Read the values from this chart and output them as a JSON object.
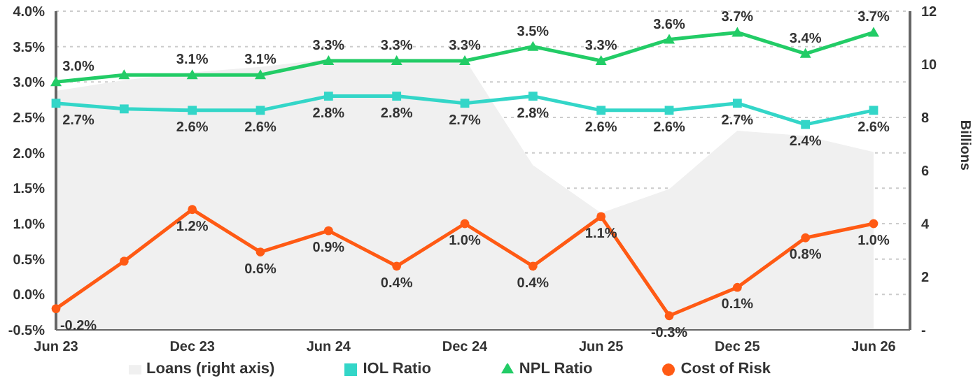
{
  "chart_data": {
    "type": "line",
    "y2label": "Billions",
    "categories": [
      "Jun 23",
      null,
      "Dec 23",
      null,
      "Jun 24",
      null,
      "Dec 24",
      null,
      "Jun 25",
      null,
      "Dec 25",
      null,
      "Jun 26"
    ],
    "series": [
      {
        "name": "Loans (right axis)",
        "type": "area",
        "axis": "y2",
        "color": "#f0f0f0",
        "marker": "none",
        "values": [
          9.0,
          9.4,
          9.7,
          9.9,
          10.2,
          10.2,
          10.2,
          6.2,
          4.4,
          5.3,
          7.5,
          7.3,
          6.7
        ]
      },
      {
        "name": "IOL Ratio",
        "color": "#33d6c8",
        "marker": "square",
        "values": [
          2.7,
          2.62,
          2.6,
          2.6,
          2.8,
          2.8,
          2.7,
          2.8,
          2.6,
          2.6,
          2.7,
          2.4,
          2.6
        ],
        "value_labels": [
          "2.7%",
          null,
          "2.6%",
          "2.6%",
          "2.8%",
          "2.8%",
          "2.7%",
          "2.8%",
          "2.6%",
          "2.6%",
          "2.7%",
          "2.4%",
          "2.6%"
        ]
      },
      {
        "name": "NPL Ratio",
        "color": "#22cc66",
        "marker": "triangle",
        "values": [
          3.0,
          3.1,
          3.1,
          3.1,
          3.3,
          3.3,
          3.3,
          3.5,
          3.3,
          3.6,
          3.7,
          3.4,
          3.7
        ],
        "value_labels": [
          "3.0%",
          null,
          "3.1%",
          "3.1%",
          "3.3%",
          "3.3%",
          "3.3%",
          "3.5%",
          "3.3%",
          "3.6%",
          "3.7%",
          "3.4%",
          "3.7%"
        ]
      },
      {
        "name": "Cost of Risk",
        "color": "#ff5a14",
        "marker": "circle",
        "values": [
          -0.2,
          0.47,
          1.2,
          0.6,
          0.9,
          0.4,
          1.0,
          0.4,
          1.1,
          -0.3,
          0.1,
          0.8,
          1.0
        ],
        "value_labels": [
          "-0.2%",
          null,
          "1.2%",
          "0.6%",
          "0.9%",
          "0.4%",
          "1.0%",
          "0.4%",
          "1.1%",
          "-0.3%",
          "0.1%",
          "0.8%",
          "1.0%"
        ]
      }
    ],
    "ylim": [
      -0.5,
      4.0
    ],
    "yticks": [
      {
        "value": -0.5,
        "label": "-0.5%"
      },
      {
        "value": 0,
        "label": "0.0%"
      },
      {
        "value": 0.5,
        "label": "0.5%"
      },
      {
        "value": 1.0,
        "label": "1.0%"
      },
      {
        "value": 1.5,
        "label": "1.5%"
      },
      {
        "value": 2.0,
        "label": "2.0%"
      },
      {
        "value": 2.5,
        "label": "2.5%"
      },
      {
        "value": 3.0,
        "label": "3.0%"
      },
      {
        "value": 3.5,
        "label": "3.5%"
      },
      {
        "value": 4.0,
        "label": "4.0%"
      }
    ],
    "y2lim": [
      0,
      12
    ],
    "y2ticks": [
      {
        "value": 0,
        "label": "-"
      },
      2,
      4,
      6,
      8,
      10,
      12
    ],
    "grid": "y",
    "legend": "bottom"
  }
}
